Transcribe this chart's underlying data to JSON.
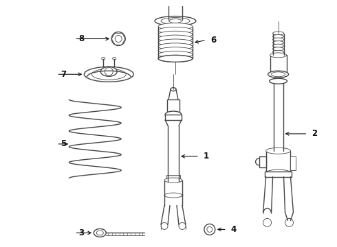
{
  "bg_color": "#ffffff",
  "line_color": "#444444",
  "text_color": "#111111",
  "figsize": [
    4.9,
    3.6
  ],
  "dpi": 100
}
